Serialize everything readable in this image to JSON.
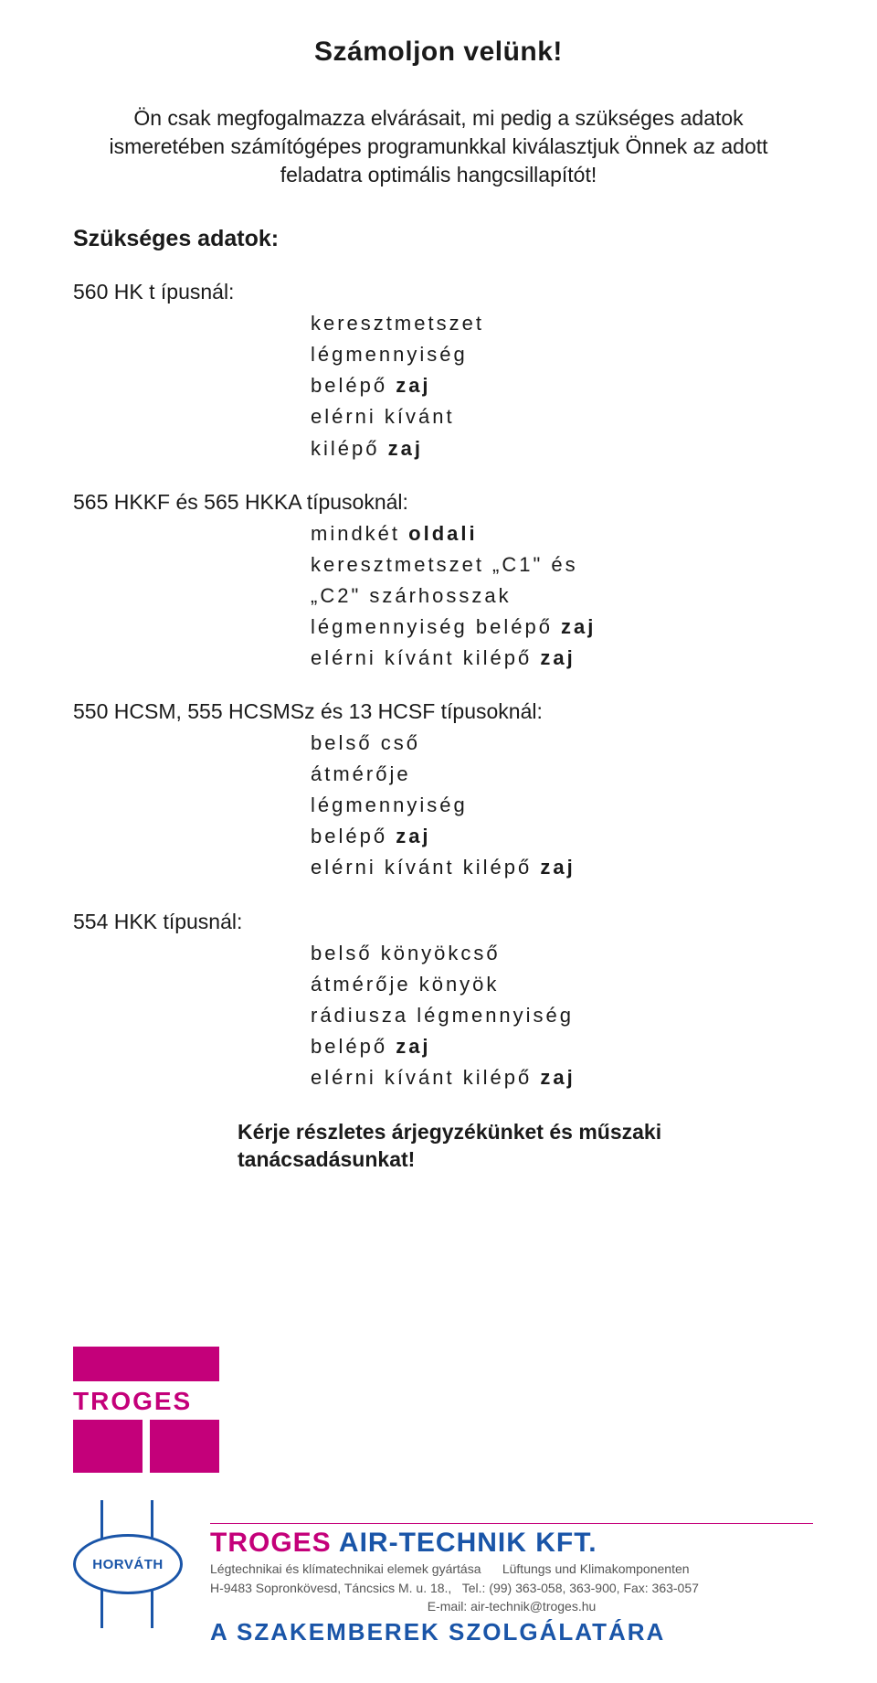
{
  "title": "Számoljon velünk!",
  "intro": "Ön csak megfogalmazza elvárásait, mi pedig a szükséges adatok ismeretében számítógépes programunkkal kiválasztjuk Önnek az adott feladatra optimális hangcsillapítót!",
  "required_label": "Szükséges adatok:",
  "sections": [
    {
      "label": "560 HK t ípusnál:",
      "lines": [
        {
          "parts": [
            {
              "t": "keresztmetszet",
              "b": false
            }
          ]
        },
        {
          "parts": [
            {
              "t": "légmennyiség",
              "b": false
            }
          ]
        },
        {
          "parts": [
            {
              "t": "belépő ",
              "b": false
            },
            {
              "t": "zaj",
              "b": true
            }
          ]
        },
        {
          "parts": [
            {
              "t": "elérni kívánt",
              "b": false
            }
          ]
        },
        {
          "parts": [
            {
              "t": "kilépő ",
              "b": false
            },
            {
              "t": "zaj",
              "b": true
            }
          ]
        }
      ]
    },
    {
      "label": "565 HKKF és 565 HKKA típusoknál:",
      "lines": [
        {
          "parts": [
            {
              "t": "mindkét ",
              "b": false
            },
            {
              "t": "oldali",
              "b": true
            }
          ]
        },
        {
          "parts": [
            {
              "t": "keresztmetszet „C1\" és",
              "b": false
            }
          ]
        },
        {
          "parts": [
            {
              "t": "„C2\" szárhosszak",
              "b": false
            }
          ]
        },
        {
          "parts": [
            {
              "t": "légmennyiség belépő ",
              "b": false
            },
            {
              "t": "zaj",
              "b": true
            }
          ]
        },
        {
          "parts": [
            {
              "t": "elérni kívánt kilépő ",
              "b": false
            },
            {
              "t": "zaj",
              "b": true
            }
          ]
        }
      ]
    },
    {
      "label": "550 HCSM, 555 HCSMSz és 13 HCSF típusoknál:",
      "lines": [
        {
          "parts": [
            {
              "t": "belső cső",
              "b": false
            }
          ]
        },
        {
          "parts": [
            {
              "t": "átmérője",
              "b": false
            }
          ]
        },
        {
          "parts": [
            {
              "t": "légmennyiség",
              "b": false
            }
          ]
        },
        {
          "parts": [
            {
              "t": "belépő ",
              "b": false
            },
            {
              "t": "zaj",
              "b": true
            }
          ]
        },
        {
          "parts": [
            {
              "t": "elérni kívánt kilépő ",
              "b": false
            },
            {
              "t": "zaj",
              "b": true
            }
          ]
        }
      ]
    },
    {
      "label": "554 HKK típusnál:",
      "lines": [
        {
          "parts": [
            {
              "t": "belső könyökcső",
              "b": false
            }
          ]
        },
        {
          "parts": [
            {
              "t": "átmérője könyök",
              "b": false
            }
          ]
        },
        {
          "parts": [
            {
              "t": "rádiusza légmennyiség",
              "b": false
            }
          ]
        },
        {
          "parts": [
            {
              "t": "belépő ",
              "b": false
            },
            {
              "t": "zaj",
              "b": true
            }
          ]
        },
        {
          "parts": [
            {
              "t": "elérni kívánt kilépő ",
              "b": false
            },
            {
              "t": "zaj",
              "b": true
            }
          ]
        }
      ]
    }
  ],
  "closing": "Kérje részletes árjegyzékünket és műszaki tanácsadásunkat!",
  "logo_text": "TROGES",
  "horvath": "HORVÁTH",
  "company": {
    "name_red": "TROGES",
    "name_blue": " AIR-TECHNIK KFT.",
    "sub1_left": "Légtechnikai és klímatechnikai elemek gyártása",
    "sub1_right": "Lüftungs und Klimakomponenten",
    "sub2_left": "H-9483 Sopronkövesd, Táncsics M. u. 18.,",
    "sub2_right": "Tel.: (99) 363-058, 363-900, Fax: 363-057",
    "sub3": "E-mail: air-technik@troges.hu",
    "tag": "A SZAKEMBEREK SZOLGÁLATÁRA"
  },
  "colors": {
    "magenta": "#c4007a",
    "blue": "#1a55a8",
    "text": "#1a1a1a",
    "grey": "#555555",
    "bg": "#ffffff"
  }
}
